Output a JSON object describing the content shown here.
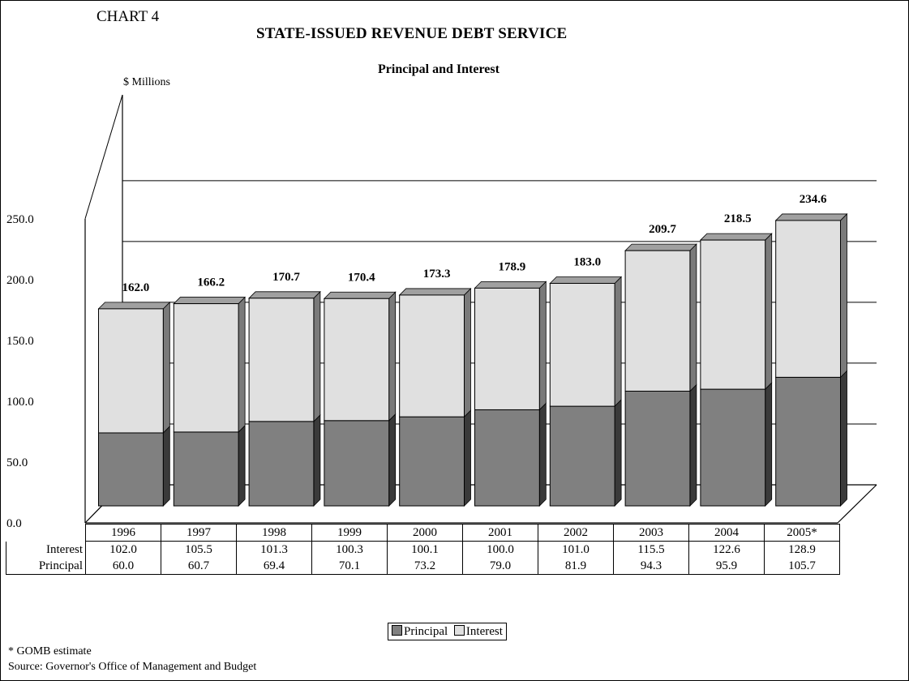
{
  "header": {
    "chart_label": "CHART 4",
    "title": "STATE-ISSUED REVENUE DEBT SERVICE",
    "subtitle": "Principal and Interest",
    "y_unit": "$ Millions"
  },
  "colors": {
    "principal": "#808080",
    "interest": "#e0e0e0",
    "side_dark": "#3a3a3a",
    "top_grey": "#a0a0a0"
  },
  "chart_data": {
    "type": "bar",
    "stacked": true,
    "title": "STATE-ISSUED REVENUE DEBT SERVICE",
    "subtitle": "Principal and Interest",
    "ylabel": "$ Millions",
    "ylim": [
      0,
      250
    ],
    "yticks": [
      "0.0",
      "50.0",
      "100.0",
      "150.0",
      "200.0",
      "250.0"
    ],
    "grid": true,
    "categories": [
      "1996",
      "1997",
      "1998",
      "1999",
      "2000",
      "2001",
      "2002",
      "2003",
      "2004",
      "2005*"
    ],
    "series": [
      {
        "name": "Principal",
        "values": [
          60.0,
          60.7,
          69.4,
          70.1,
          73.2,
          79.0,
          81.9,
          94.3,
          95.9,
          105.7
        ]
      },
      {
        "name": "Interest",
        "values": [
          102.0,
          105.5,
          101.3,
          100.3,
          100.1,
          100.0,
          101.0,
          115.5,
          122.6,
          128.9
        ]
      }
    ],
    "totals": [
      "162.0",
      "166.2",
      "170.7",
      "170.4",
      "173.3",
      "178.9",
      "183.0",
      "209.7",
      "218.5",
      "234.6"
    ],
    "legend_position": "bottom"
  },
  "table": {
    "rows": [
      {
        "label": "Interest",
        "values": [
          "102.0",
          "105.5",
          "101.3",
          "100.3",
          "100.1",
          "100.0",
          "101.0",
          "115.5",
          "122.6",
          "128.9"
        ]
      },
      {
        "label": "Principal",
        "values": [
          "60.0",
          "60.7",
          "69.4",
          "70.1",
          "73.2",
          "79.0",
          "81.9",
          "94.3",
          "95.9",
          "105.7"
        ]
      }
    ]
  },
  "legend": {
    "principal": "Principal",
    "interest": "Interest"
  },
  "footer": {
    "note": "* GOMB estimate",
    "source": "Source: Governor's Office of Management and Budget"
  }
}
